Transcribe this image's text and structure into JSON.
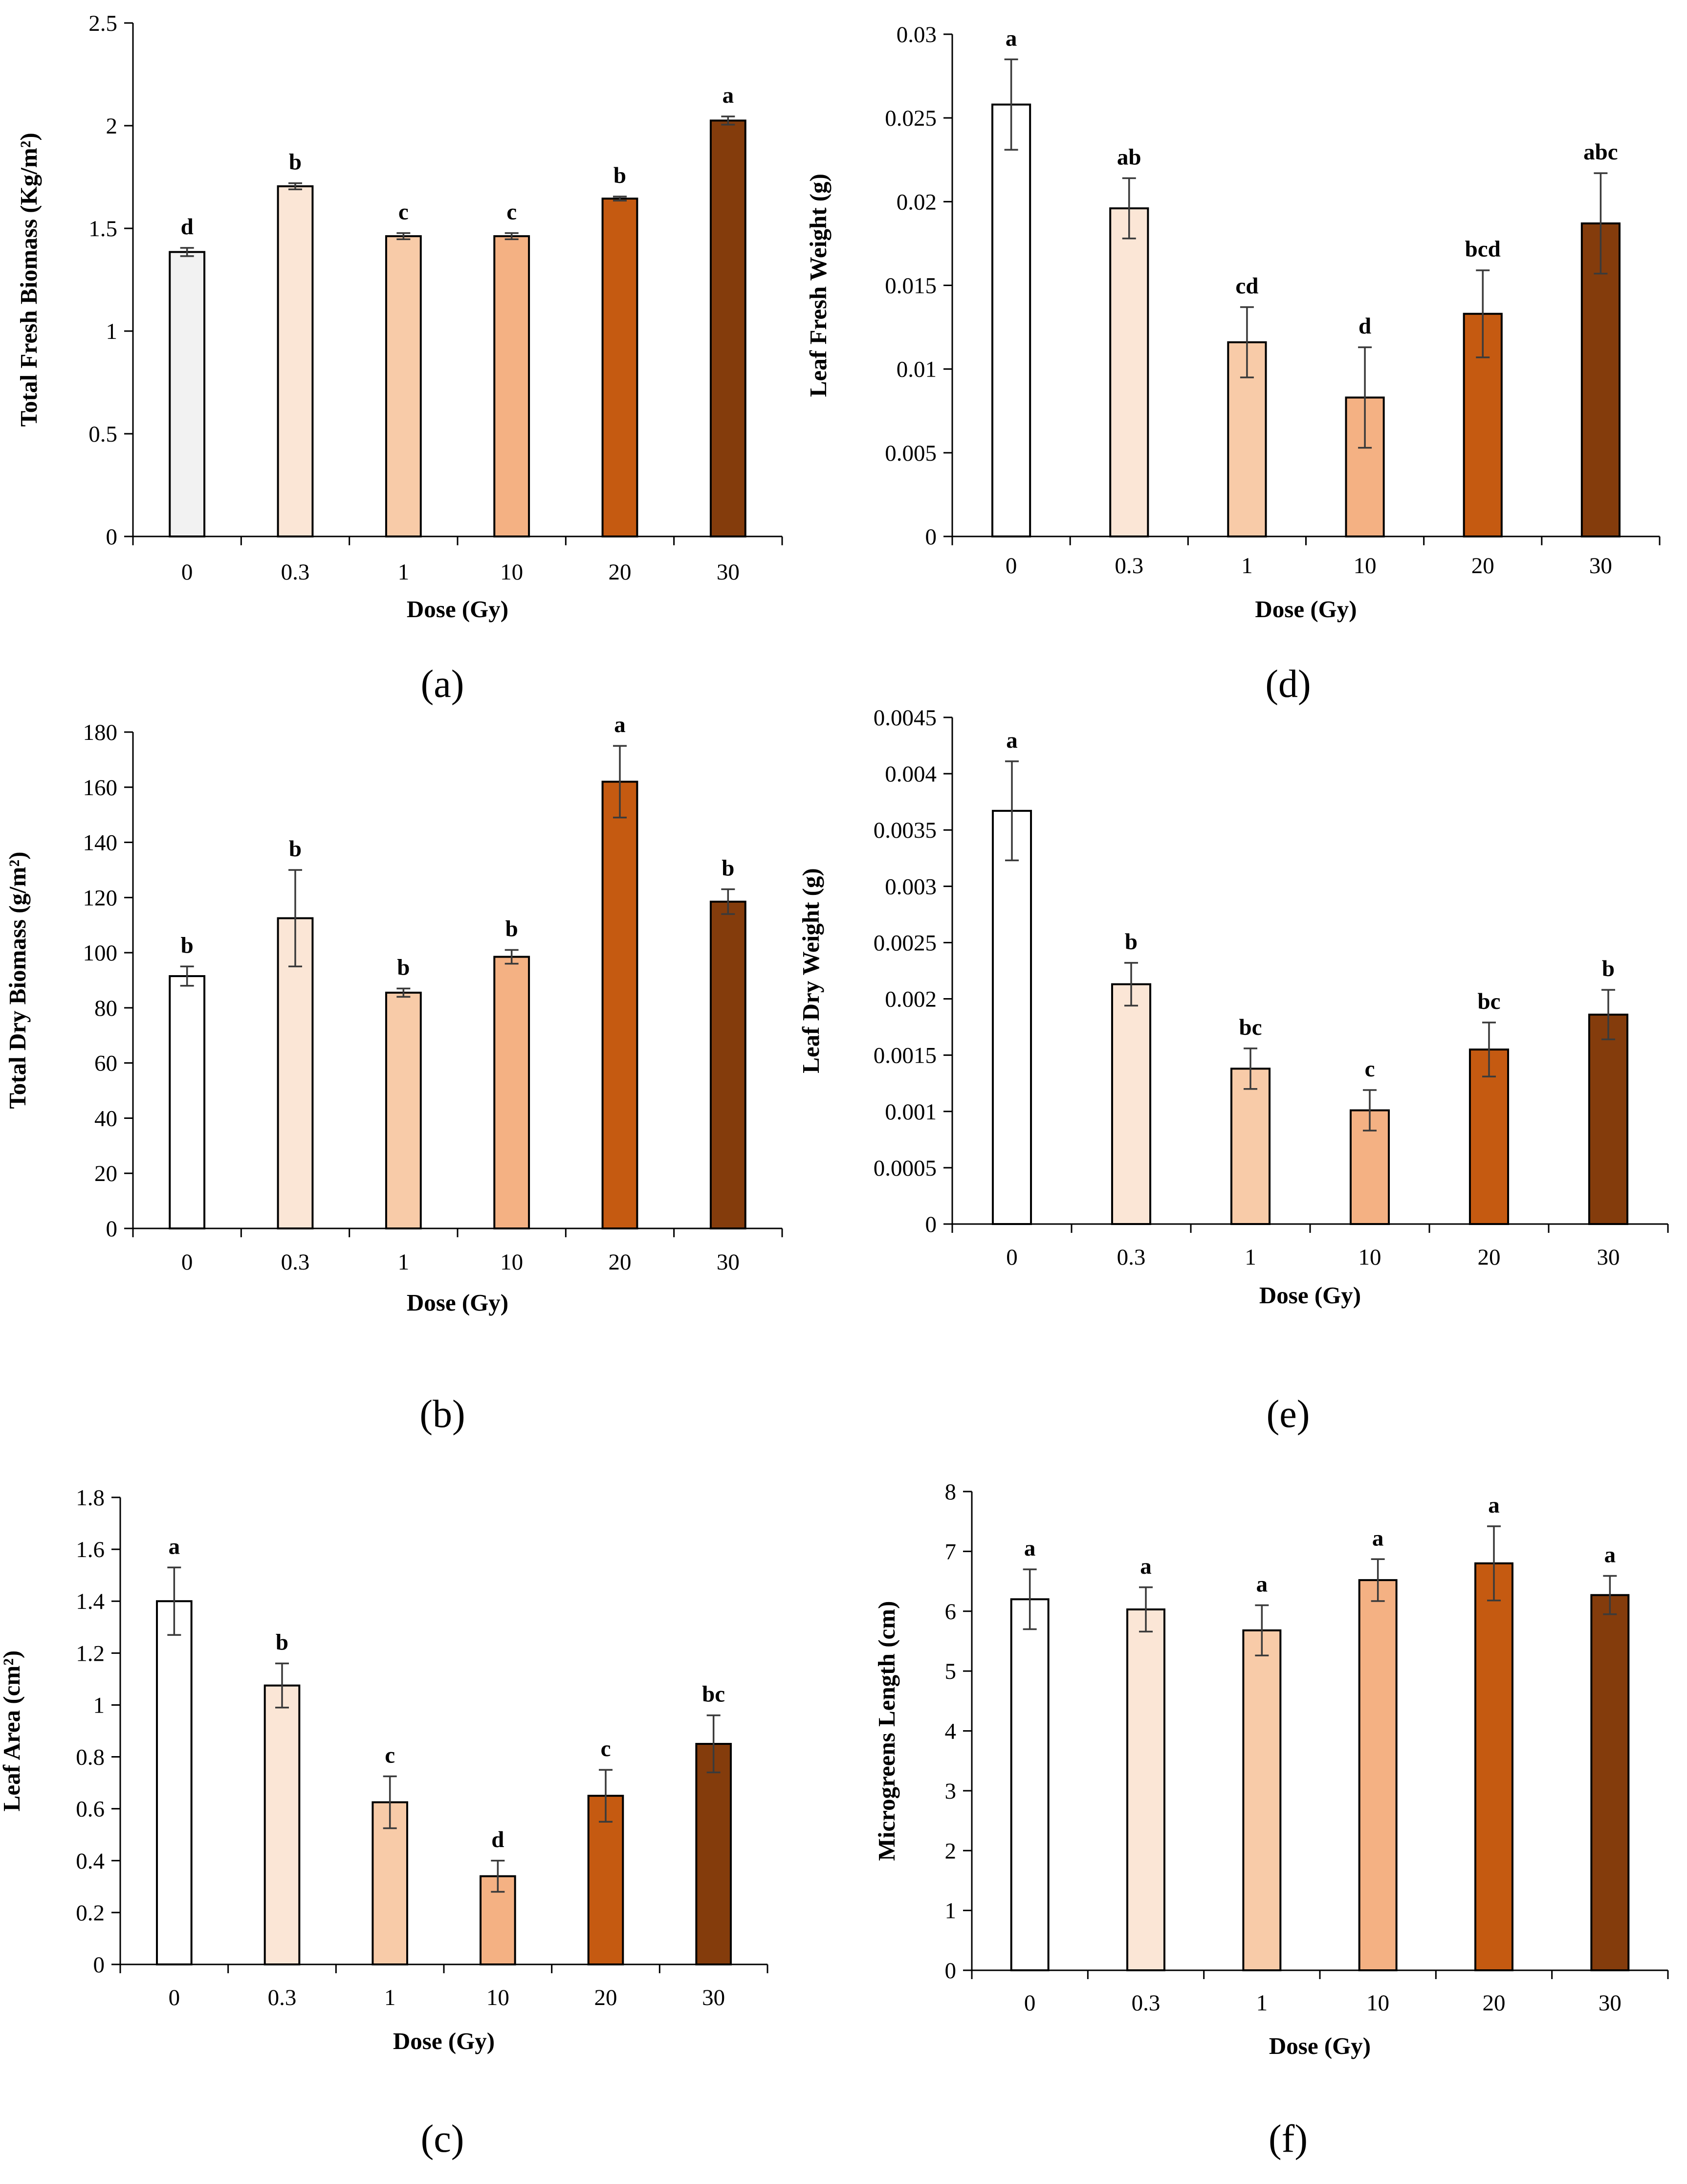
{
  "colors": [
    "#ffffff",
    "#fbe6d6",
    "#f8cba8",
    "#f4b183",
    "#c55a11",
    "#843c0c"
  ],
  "chart_data": [
    {
      "type": "bar",
      "panel": "(a)",
      "categories": [
        "0",
        "0.3",
        "1",
        "10",
        "20",
        "30"
      ],
      "values": [
        1.385,
        1.705,
        1.462,
        1.462,
        1.645,
        2.025
      ],
      "errors": [
        0.02,
        0.015,
        0.015,
        0.015,
        0.01,
        0.02
      ],
      "significance": [
        "d",
        "b",
        "c",
        "c",
        "b",
        "a"
      ],
      "xlabel": "Dose (Gy)",
      "ylabel": "Total Fresh Biomass (Kg/m²)",
      "ylim": [
        0,
        2.5
      ],
      "yticks": [
        "0",
        "0.5",
        "1",
        "1.5",
        "2",
        "2.5"
      ],
      "first_color": "#f2f2f2"
    },
    {
      "type": "bar",
      "panel": "(d)",
      "categories": [
        "0",
        "0.3",
        "1",
        "10",
        "20",
        "30"
      ],
      "values": [
        0.0258,
        0.0196,
        0.0116,
        0.0083,
        0.0133,
        0.0187
      ],
      "errors": [
        0.0027,
        0.0018,
        0.0021,
        0.003,
        0.0026,
        0.003
      ],
      "significance": [
        "a",
        "ab",
        "cd",
        "d",
        "bcd",
        "abc"
      ],
      "xlabel": "Dose (Gy)",
      "ylabel": "Leaf Fresh Weight (g)",
      "ylim": [
        0,
        0.03
      ],
      "yticks": [
        "0",
        "0.005",
        "0.01",
        "0.015",
        "0.02",
        "0.025",
        "0.03"
      ]
    },
    {
      "type": "bar",
      "panel": "(b)",
      "categories": [
        "0",
        "0.3",
        "1",
        "10",
        "20",
        "30"
      ],
      "values": [
        91.5,
        112.5,
        85.5,
        98.5,
        162,
        118.5
      ],
      "errors": [
        3.5,
        17.5,
        1.5,
        2.5,
        13,
        4.5
      ],
      "significance": [
        "b",
        "b",
        "b",
        "b",
        "a",
        "b"
      ],
      "xlabel": "Dose (Gy)",
      "ylabel": "Total Dry Biomass (g/m²)",
      "ylim": [
        0,
        180
      ],
      "yticks": [
        "0",
        "20",
        "40",
        "60",
        "80",
        "100",
        "120",
        "140",
        "160",
        "180"
      ]
    },
    {
      "type": "bar",
      "panel": "(e)",
      "categories": [
        "0",
        "0.3",
        "1",
        "10",
        "20",
        "30"
      ],
      "values": [
        0.00367,
        0.00213,
        0.00138,
        0.00101,
        0.00155,
        0.00186
      ],
      "errors": [
        0.00044,
        0.00019,
        0.00018,
        0.00018,
        0.00024,
        0.00022
      ],
      "significance": [
        "a",
        "b",
        "bc",
        "c",
        "bc",
        "b"
      ],
      "xlabel": "Dose (Gy)",
      "ylabel": "Leaf Dry Weight (g)",
      "ylim": [
        0,
        0.0045
      ],
      "yticks": [
        "0",
        "0.0005",
        "0.001",
        "0.0015",
        "0.002",
        "0.0025",
        "0.003",
        "0.0035",
        "0.004",
        "0.0045"
      ]
    },
    {
      "type": "bar",
      "panel": "(c)",
      "categories": [
        "0",
        "0.3",
        "1",
        "10",
        "20",
        "30"
      ],
      "values": [
        1.4,
        1.075,
        0.625,
        0.34,
        0.65,
        0.85
      ],
      "errors": [
        0.13,
        0.085,
        0.1,
        0.06,
        0.1,
        0.11
      ],
      "significance": [
        "a",
        "b",
        "c",
        "d",
        "c",
        "bc"
      ],
      "xlabel": "Dose (Gy)",
      "ylabel": "Leaf Area (cm²)",
      "ylim": [
        0,
        1.8
      ],
      "yticks": [
        "0",
        "0.2",
        "0.4",
        "0.6",
        "0.8",
        "1",
        "1.2",
        "1.4",
        "1.6",
        "1.8"
      ]
    },
    {
      "type": "bar",
      "panel": "(f)",
      "categories": [
        "0",
        "0.3",
        "1",
        "10",
        "20",
        "30"
      ],
      "values": [
        6.2,
        6.03,
        5.68,
        6.52,
        6.8,
        6.27
      ],
      "errors": [
        0.5,
        0.37,
        0.42,
        0.35,
        0.62,
        0.32
      ],
      "significance": [
        "a",
        "a",
        "a",
        "a",
        "a",
        "a"
      ],
      "xlabel": "Dose (Gy)",
      "ylabel": "Microgreens Length (cm)",
      "ylim": [
        0,
        8
      ],
      "yticks": [
        "0",
        "1",
        "2",
        "3",
        "4",
        "5",
        "6",
        "7",
        "8"
      ]
    }
  ]
}
